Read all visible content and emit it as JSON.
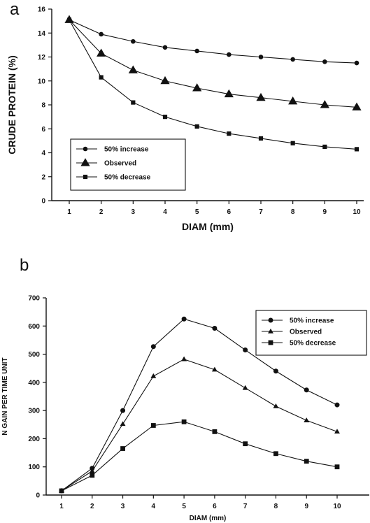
{
  "chart_data": [
    {
      "panel": "a",
      "type": "line",
      "xlabel": "DIAM (mm)",
      "ylabel": "CRUDE PROTEIN (%)",
      "xlim": [
        1,
        10
      ],
      "ylim": [
        0,
        16
      ],
      "xticks": [
        1,
        2,
        3,
        4,
        5,
        6,
        7,
        8,
        9,
        10
      ],
      "yticks": [
        0,
        2,
        4,
        6,
        8,
        10,
        12,
        14,
        16
      ],
      "grid": false,
      "legend": "bottom-left",
      "x": [
        1,
        2,
        3,
        4,
        5,
        6,
        7,
        8,
        9,
        10
      ],
      "series": [
        {
          "name": "50% increase",
          "marker": "circle",
          "values": [
            15.1,
            13.9,
            13.3,
            12.8,
            12.5,
            12.2,
            12.0,
            11.8,
            11.6,
            11.5
          ]
        },
        {
          "name": "Observed",
          "marker": "triangle",
          "values": [
            15.1,
            12.3,
            10.9,
            10.0,
            9.4,
            8.9,
            8.6,
            8.3,
            8.0,
            7.8
          ]
        },
        {
          "name": "50% decrease",
          "marker": "square",
          "values": [
            15.1,
            10.3,
            8.2,
            7.0,
            6.2,
            5.6,
            5.2,
            4.8,
            4.5,
            4.3
          ]
        }
      ]
    },
    {
      "panel": "b",
      "type": "line",
      "xlabel": "DIAM (mm)",
      "ylabel": "N GAIN PER TIME UNIT",
      "xlim": [
        1,
        10
      ],
      "ylim": [
        0,
        700
      ],
      "xticks": [
        1,
        2,
        3,
        4,
        5,
        6,
        7,
        8,
        9,
        10
      ],
      "yticks": [
        0,
        100,
        200,
        300,
        400,
        500,
        600,
        700
      ],
      "grid": false,
      "legend": "top-right",
      "x": [
        1,
        2,
        3,
        4,
        5,
        6,
        7,
        8,
        9,
        10
      ],
      "series": [
        {
          "name": "50% increase",
          "marker": "circle",
          "values": [
            15,
            95,
            300,
            527,
            625,
            592,
            515,
            440,
            373,
            320
          ]
        },
        {
          "name": "Observed",
          "marker": "triangle",
          "values": [
            15,
            85,
            252,
            422,
            482,
            445,
            380,
            315,
            265,
            225
          ]
        },
        {
          "name": "50% decrease",
          "marker": "square",
          "values": [
            15,
            70,
            165,
            247,
            260,
            225,
            182,
            147,
            120,
            100
          ]
        }
      ]
    }
  ]
}
